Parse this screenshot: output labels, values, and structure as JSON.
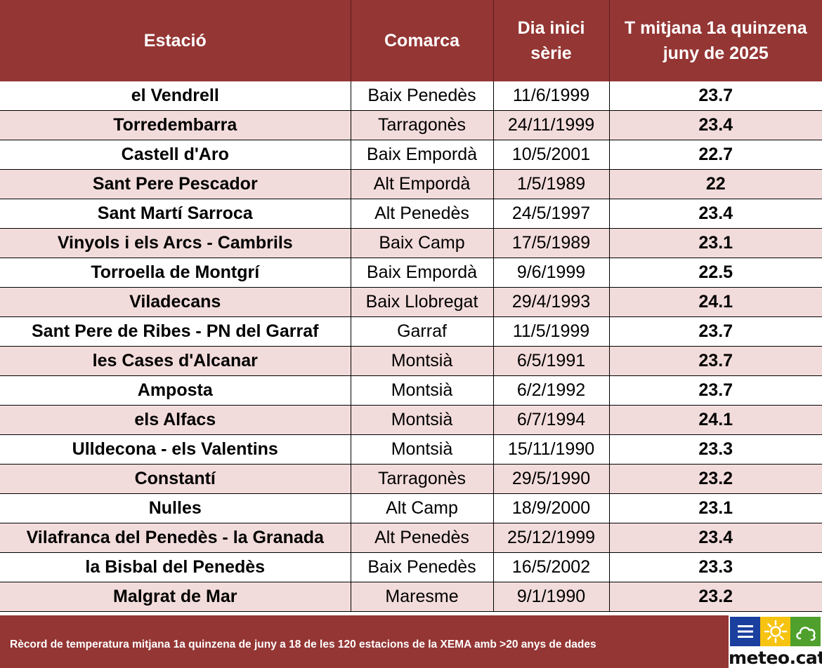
{
  "headers": {
    "station": "Estació",
    "region": "Comarca",
    "start_line1": "Dia inici",
    "start_line2": "sèrie",
    "temp_line1": "T mitjana 1a quinzena",
    "temp_line2": "juny de 2025"
  },
  "rows": [
    {
      "station": "el Vendrell",
      "region": "Baix Penedès",
      "start": "11/6/1999",
      "temp": "23.7"
    },
    {
      "station": "Torredembarra",
      "region": "Tarragonès",
      "start": "24/11/1999",
      "temp": "23.4"
    },
    {
      "station": "Castell d'Aro",
      "region": "Baix Empordà",
      "start": "10/5/2001",
      "temp": "22.7"
    },
    {
      "station": "Sant Pere Pescador",
      "region": "Alt Empordà",
      "start": "1/5/1989",
      "temp": "22"
    },
    {
      "station": "Sant Martí Sarroca",
      "region": "Alt Penedès",
      "start": "24/5/1997",
      "temp": "23.4"
    },
    {
      "station": "Vinyols i els Arcs - Cambrils",
      "region": "Baix Camp",
      "start": "17/5/1989",
      "temp": "23.1"
    },
    {
      "station": "Torroella de Montgrí",
      "region": "Baix Empordà",
      "start": "9/6/1999",
      "temp": "22.5"
    },
    {
      "station": "Viladecans",
      "region": "Baix Llobregat",
      "start": "29/4/1993",
      "temp": "24.1"
    },
    {
      "station": "Sant Pere de Ribes - PN del Garraf",
      "region": "Garraf",
      "start": "11/5/1999",
      "temp": "23.7"
    },
    {
      "station": "les Cases d'Alcanar",
      "region": "Montsià",
      "start": "6/5/1991",
      "temp": "23.7"
    },
    {
      "station": "Amposta",
      "region": "Montsià",
      "start": "6/2/1992",
      "temp": "23.7"
    },
    {
      "station": "els Alfacs",
      "region": "Montsià",
      "start": "6/7/1994",
      "temp": "24.1"
    },
    {
      "station": "Ulldecona - els Valentins",
      "region": "Montsià",
      "start": "15/11/1990",
      "temp": "23.3"
    },
    {
      "station": "Constantí",
      "region": "Tarragonès",
      "start": "29/5/1990",
      "temp": "23.2"
    },
    {
      "station": "Nulles",
      "region": "Alt Camp",
      "start": "18/9/2000",
      "temp": "23.1"
    },
    {
      "station": "Vilafranca del Penedès - la Granada",
      "region": "Alt Penedès",
      "start": "25/12/1999",
      "temp": "23.4"
    },
    {
      "station": "la Bisbal del Penedès",
      "region": "Baix Penedès",
      "start": "16/5/2002",
      "temp": "23.3"
    },
    {
      "station": "Malgrat de Mar",
      "region": "Maresme",
      "start": "9/1/1990",
      "temp": "23.2"
    }
  ],
  "footer": {
    "text": "Rècord de temperatura mitjana 1a quinzena de juny a 18 de les 120 estacions de la XEMA amb >20 anys de dades"
  },
  "logo": {
    "text": "meteo.cat",
    "icons": [
      "menu-icon",
      "sun-icon",
      "cloud-icon"
    ],
    "colors": {
      "blue": "#1a3f9e",
      "yellow": "#f6c310",
      "green": "#4fa02c"
    }
  },
  "colors": {
    "header_bg": "#943634",
    "alt_row_bg": "#f2dcdb"
  }
}
